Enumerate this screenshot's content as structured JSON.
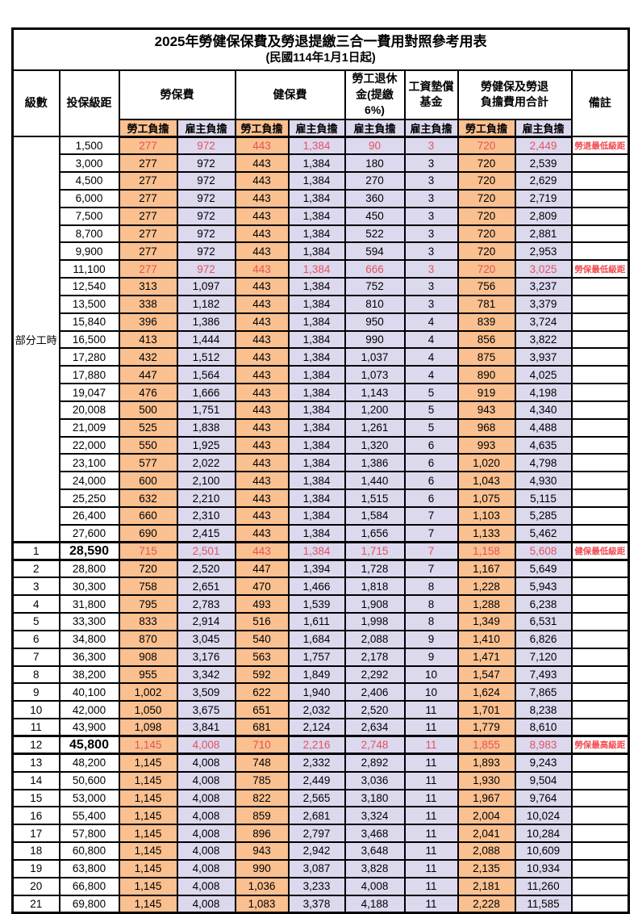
{
  "title": "2025年勞健保保費及勞退提繳三合一費用對照參考用表",
  "subtitle": "(民國114年1月1日起)",
  "header": {
    "level": "級數",
    "bracket": "投保級距",
    "labor_insurance": "勞保費",
    "health_insurance": "健保費",
    "pension": "勞工退休\n金(提繳6%)",
    "wage_fund": "工資墊償\n基金",
    "total": "勞健保及勞退\n負擔費用合計",
    "note": "備註",
    "employee": "勞工負擔",
    "employer": "雇主負擔"
  },
  "part_time_label": "部分工時",
  "colors": {
    "employee_bg": "#FAC090",
    "employer_bg": "#DCD8EE",
    "highlight_red": "#E4525C",
    "note_red": "#F2494F",
    "border": "#000000"
  },
  "rows": [
    {
      "level": "",
      "bracket": "1,500",
      "values": [
        "277",
        "972",
        "443",
        "1,384",
        "90",
        "3",
        "720",
        "2,449"
      ],
      "note": "勞退最低級距",
      "hl": true,
      "box": false,
      "bold": false
    },
    {
      "level": "",
      "bracket": "3,000",
      "values": [
        "277",
        "972",
        "443",
        "1,384",
        "180",
        "3",
        "720",
        "2,539"
      ],
      "note": "",
      "hl": false,
      "box": false,
      "bold": false
    },
    {
      "level": "",
      "bracket": "4,500",
      "values": [
        "277",
        "972",
        "443",
        "1,384",
        "270",
        "3",
        "720",
        "2,629"
      ],
      "note": "",
      "hl": false,
      "box": false,
      "bold": false
    },
    {
      "level": "",
      "bracket": "6,000",
      "values": [
        "277",
        "972",
        "443",
        "1,384",
        "360",
        "3",
        "720",
        "2,719"
      ],
      "note": "",
      "hl": false,
      "box": false,
      "bold": false
    },
    {
      "level": "",
      "bracket": "7,500",
      "values": [
        "277",
        "972",
        "443",
        "1,384",
        "450",
        "3",
        "720",
        "2,809"
      ],
      "note": "",
      "hl": false,
      "box": false,
      "bold": false
    },
    {
      "level": "",
      "bracket": "8,700",
      "values": [
        "277",
        "972",
        "443",
        "1,384",
        "522",
        "3",
        "720",
        "2,881"
      ],
      "note": "",
      "hl": false,
      "box": false,
      "bold": false
    },
    {
      "level": "",
      "bracket": "9,900",
      "values": [
        "277",
        "972",
        "443",
        "1,384",
        "594",
        "3",
        "720",
        "2,953"
      ],
      "note": "",
      "hl": false,
      "box": false,
      "bold": false
    },
    {
      "level": "",
      "bracket": "11,100",
      "values": [
        "277",
        "972",
        "443",
        "1,384",
        "666",
        "3",
        "720",
        "3,025"
      ],
      "note": "勞保最低級距",
      "hl": true,
      "box": false,
      "bold": false
    },
    {
      "level": "",
      "bracket": "12,540",
      "values": [
        "313",
        "1,097",
        "443",
        "1,384",
        "752",
        "3",
        "756",
        "3,237"
      ],
      "note": "",
      "hl": false,
      "box": false,
      "bold": false
    },
    {
      "level": "",
      "bracket": "13,500",
      "values": [
        "338",
        "1,182",
        "443",
        "1,384",
        "810",
        "3",
        "781",
        "3,379"
      ],
      "note": "",
      "hl": false,
      "box": false,
      "bold": false
    },
    {
      "level": "",
      "bracket": "15,840",
      "values": [
        "396",
        "1,386",
        "443",
        "1,384",
        "950",
        "4",
        "839",
        "3,724"
      ],
      "note": "",
      "hl": false,
      "box": false,
      "bold": false
    },
    {
      "level": "",
      "bracket": "16,500",
      "values": [
        "413",
        "1,444",
        "443",
        "1,384",
        "990",
        "4",
        "856",
        "3,822"
      ],
      "note": "",
      "hl": false,
      "box": false,
      "bold": false
    },
    {
      "level": "",
      "bracket": "17,280",
      "values": [
        "432",
        "1,512",
        "443",
        "1,384",
        "1,037",
        "4",
        "875",
        "3,937"
      ],
      "note": "",
      "hl": false,
      "box": false,
      "bold": false
    },
    {
      "level": "",
      "bracket": "17,880",
      "values": [
        "447",
        "1,564",
        "443",
        "1,384",
        "1,073",
        "4",
        "890",
        "4,025"
      ],
      "note": "",
      "hl": false,
      "box": false,
      "bold": false
    },
    {
      "level": "",
      "bracket": "19,047",
      "values": [
        "476",
        "1,666",
        "443",
        "1,384",
        "1,143",
        "5",
        "919",
        "4,198"
      ],
      "note": "",
      "hl": false,
      "box": false,
      "bold": false
    },
    {
      "level": "",
      "bracket": "20,008",
      "values": [
        "500",
        "1,751",
        "443",
        "1,384",
        "1,200",
        "5",
        "943",
        "4,340"
      ],
      "note": "",
      "hl": false,
      "box": false,
      "bold": false
    },
    {
      "level": "",
      "bracket": "21,009",
      "values": [
        "525",
        "1,838",
        "443",
        "1,384",
        "1,261",
        "5",
        "968",
        "4,488"
      ],
      "note": "",
      "hl": false,
      "box": false,
      "bold": false
    },
    {
      "level": "",
      "bracket": "22,000",
      "values": [
        "550",
        "1,925",
        "443",
        "1,384",
        "1,320",
        "6",
        "993",
        "4,635"
      ],
      "note": "",
      "hl": false,
      "box": false,
      "bold": false
    },
    {
      "level": "",
      "bracket": "23,100",
      "values": [
        "577",
        "2,022",
        "443",
        "1,384",
        "1,386",
        "6",
        "1,020",
        "4,798"
      ],
      "note": "",
      "hl": false,
      "box": false,
      "bold": false
    },
    {
      "level": "",
      "bracket": "24,000",
      "values": [
        "600",
        "2,100",
        "443",
        "1,384",
        "1,440",
        "6",
        "1,043",
        "4,930"
      ],
      "note": "",
      "hl": false,
      "box": false,
      "bold": false
    },
    {
      "level": "",
      "bracket": "25,250",
      "values": [
        "632",
        "2,210",
        "443",
        "1,384",
        "1,515",
        "6",
        "1,075",
        "5,115"
      ],
      "note": "",
      "hl": false,
      "box": false,
      "bold": false
    },
    {
      "level": "",
      "bracket": "26,400",
      "values": [
        "660",
        "2,310",
        "443",
        "1,384",
        "1,584",
        "7",
        "1,103",
        "5,285"
      ],
      "note": "",
      "hl": false,
      "box": false,
      "bold": false
    },
    {
      "level": "",
      "bracket": "27,600",
      "values": [
        "690",
        "2,415",
        "443",
        "1,384",
        "1,656",
        "7",
        "1,133",
        "5,462"
      ],
      "note": "",
      "hl": false,
      "box": false,
      "bold": false
    },
    {
      "level": "1",
      "bracket": "28,590",
      "values": [
        "715",
        "2,501",
        "443",
        "1,384",
        "1,715",
        "7",
        "1,158",
        "5,608"
      ],
      "note": "健保最低級距",
      "hl": true,
      "box": true,
      "bold": true
    },
    {
      "level": "2",
      "bracket": "28,800",
      "values": [
        "720",
        "2,520",
        "447",
        "1,394",
        "1,728",
        "7",
        "1,167",
        "5,649"
      ],
      "note": "",
      "hl": false,
      "box": false,
      "bold": false
    },
    {
      "level": "3",
      "bracket": "30,300",
      "values": [
        "758",
        "2,651",
        "470",
        "1,466",
        "1,818",
        "8",
        "1,228",
        "5,943"
      ],
      "note": "",
      "hl": false,
      "box": false,
      "bold": false
    },
    {
      "level": "4",
      "bracket": "31,800",
      "values": [
        "795",
        "2,783",
        "493",
        "1,539",
        "1,908",
        "8",
        "1,288",
        "6,238"
      ],
      "note": "",
      "hl": false,
      "box": false,
      "bold": false
    },
    {
      "level": "5",
      "bracket": "33,300",
      "values": [
        "833",
        "2,914",
        "516",
        "1,611",
        "1,998",
        "8",
        "1,349",
        "6,531"
      ],
      "note": "",
      "hl": false,
      "box": false,
      "bold": false
    },
    {
      "level": "6",
      "bracket": "34,800",
      "values": [
        "870",
        "3,045",
        "540",
        "1,684",
        "2,088",
        "9",
        "1,410",
        "6,826"
      ],
      "note": "",
      "hl": false,
      "box": false,
      "bold": false
    },
    {
      "level": "7",
      "bracket": "36,300",
      "values": [
        "908",
        "3,176",
        "563",
        "1,757",
        "2,178",
        "9",
        "1,471",
        "7,120"
      ],
      "note": "",
      "hl": false,
      "box": false,
      "bold": false
    },
    {
      "level": "8",
      "bracket": "38,200",
      "values": [
        "955",
        "3,342",
        "592",
        "1,849",
        "2,292",
        "10",
        "1,547",
        "7,493"
      ],
      "note": "",
      "hl": false,
      "box": false,
      "bold": false
    },
    {
      "level": "9",
      "bracket": "40,100",
      "values": [
        "1,002",
        "3,509",
        "622",
        "1,940",
        "2,406",
        "10",
        "1,624",
        "7,865"
      ],
      "note": "",
      "hl": false,
      "box": false,
      "bold": false
    },
    {
      "level": "10",
      "bracket": "42,000",
      "values": [
        "1,050",
        "3,675",
        "651",
        "2,032",
        "2,520",
        "11",
        "1,701",
        "8,238"
      ],
      "note": "",
      "hl": false,
      "box": false,
      "bold": false
    },
    {
      "level": "11",
      "bracket": "43,900",
      "values": [
        "1,098",
        "3,841",
        "681",
        "2,124",
        "2,634",
        "11",
        "1,779",
        "8,610"
      ],
      "note": "",
      "hl": false,
      "box": false,
      "bold": false
    },
    {
      "level": "12",
      "bracket": "45,800",
      "values": [
        "1,145",
        "4,008",
        "710",
        "2,216",
        "2,748",
        "11",
        "1,855",
        "8,983"
      ],
      "note": "勞保最高級距",
      "hl": true,
      "box": true,
      "bold": true
    },
    {
      "level": "13",
      "bracket": "48,200",
      "values": [
        "1,145",
        "4,008",
        "748",
        "2,332",
        "2,892",
        "11",
        "1,893",
        "9,243"
      ],
      "note": "",
      "hl": false,
      "box": false,
      "bold": false
    },
    {
      "level": "14",
      "bracket": "50,600",
      "values": [
        "1,145",
        "4,008",
        "785",
        "2,449",
        "3,036",
        "11",
        "1,930",
        "9,504"
      ],
      "note": "",
      "hl": false,
      "box": false,
      "bold": false
    },
    {
      "level": "15",
      "bracket": "53,000",
      "values": [
        "1,145",
        "4,008",
        "822",
        "2,565",
        "3,180",
        "11",
        "1,967",
        "9,764"
      ],
      "note": "",
      "hl": false,
      "box": false,
      "bold": false
    },
    {
      "level": "16",
      "bracket": "55,400",
      "values": [
        "1,145",
        "4,008",
        "859",
        "2,681",
        "3,324",
        "11",
        "2,004",
        "10,024"
      ],
      "note": "",
      "hl": false,
      "box": false,
      "bold": false
    },
    {
      "level": "17",
      "bracket": "57,800",
      "values": [
        "1,145",
        "4,008",
        "896",
        "2,797",
        "3,468",
        "11",
        "2,041",
        "10,284"
      ],
      "note": "",
      "hl": false,
      "box": false,
      "bold": false
    },
    {
      "level": "18",
      "bracket": "60,800",
      "values": [
        "1,145",
        "4,008",
        "943",
        "2,942",
        "3,648",
        "11",
        "2,088",
        "10,609"
      ],
      "note": "",
      "hl": false,
      "box": false,
      "bold": false
    },
    {
      "level": "19",
      "bracket": "63,800",
      "values": [
        "1,145",
        "4,008",
        "990",
        "3,087",
        "3,828",
        "11",
        "2,135",
        "10,934"
      ],
      "note": "",
      "hl": false,
      "box": false,
      "bold": false
    },
    {
      "level": "20",
      "bracket": "66,800",
      "values": [
        "1,145",
        "4,008",
        "1,036",
        "3,233",
        "4,008",
        "11",
        "2,181",
        "11,260"
      ],
      "note": "",
      "hl": false,
      "box": false,
      "bold": false
    },
    {
      "level": "21",
      "bracket": "69,800",
      "values": [
        "1,145",
        "4,008",
        "1,083",
        "3,378",
        "4,188",
        "11",
        "2,228",
        "11,585"
      ],
      "note": "",
      "hl": false,
      "box": false,
      "bold": false
    }
  ]
}
